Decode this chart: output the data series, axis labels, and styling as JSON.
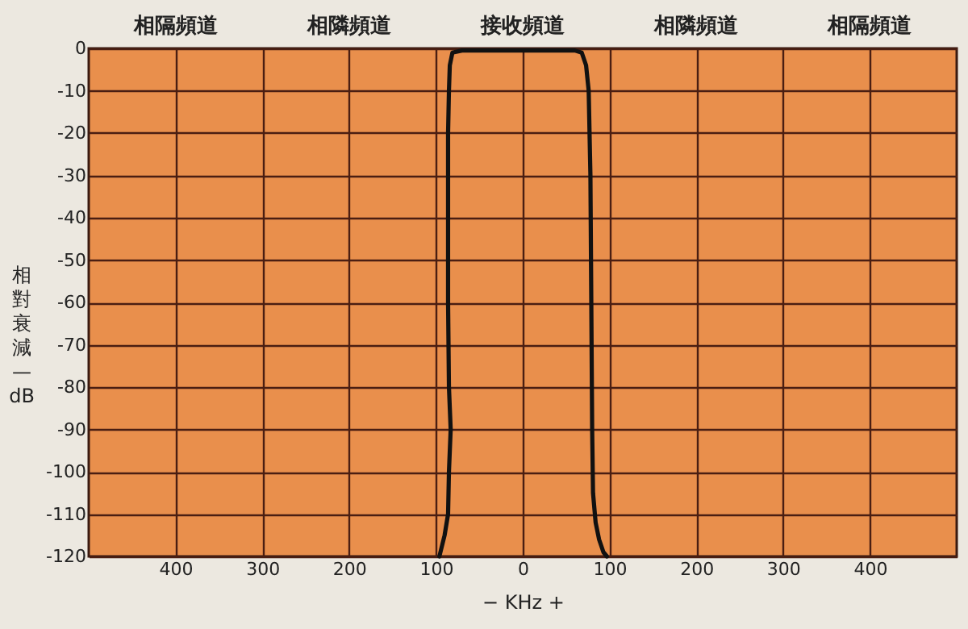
{
  "chart_data": {
    "type": "line",
    "xlabel": "− KHz +",
    "ylabel": "相對衰減—dB",
    "xlim": [
      -500,
      500
    ],
    "ylim": [
      -120,
      0
    ],
    "xticks": [
      {
        "value": -400,
        "label": "400"
      },
      {
        "value": -300,
        "label": "300"
      },
      {
        "value": -200,
        "label": "200"
      },
      {
        "value": -100,
        "label": "100"
      },
      0,
      100,
      200,
      300,
      400
    ],
    "yticks": [
      -120,
      -110,
      -100,
      -90,
      -80,
      -70,
      -60,
      -50,
      -40,
      -30,
      -20,
      -10,
      0
    ],
    "annotations": [
      "相隔頻道",
      "相隣頻道",
      "接收頻道",
      "相隣頻道",
      "相隔頻道"
    ],
    "grid": true,
    "line_style": "solid",
    "series": [
      {
        "color": "#111111",
        "x": [
          -96,
          -90,
          -86,
          -85,
          -83,
          -85,
          -86,
          -86,
          -86,
          -85,
          -84,
          -81,
          -70,
          -40,
          0,
          40,
          60,
          68,
          73,
          76,
          78,
          79,
          80,
          81,
          84,
          88,
          93,
          97
        ],
        "values": [
          -120,
          -115,
          -110,
          -100,
          -90,
          -80,
          -60,
          -40,
          -20,
          -10,
          -4,
          -1,
          -0.5,
          -0.5,
          -0.5,
          -0.5,
          -0.5,
          -1,
          -4,
          -10,
          -30,
          -60,
          -90,
          -105,
          -112,
          -116,
          -119,
          -120
        ]
      }
    ]
  }
}
